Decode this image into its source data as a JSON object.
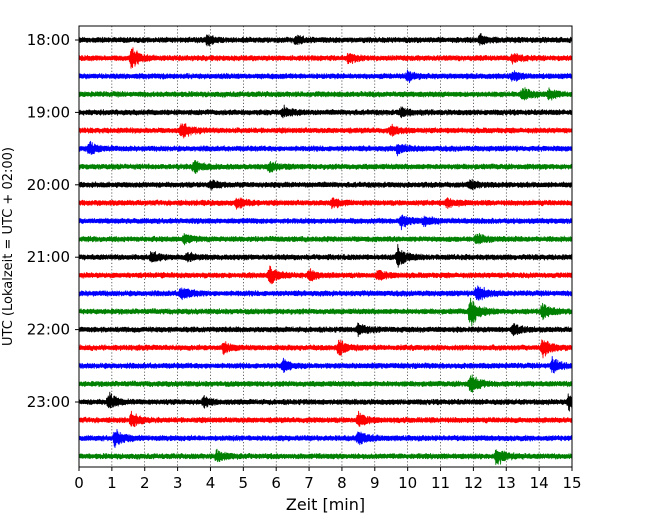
{
  "chart_data": {
    "type": "line",
    "subtype": "helicorder",
    "xlabel": "Zeit  [min]",
    "ylabel": "UTC (Lokalzeit = UTC + 02:00)",
    "xlim": [
      0,
      15
    ],
    "x_ticks": [
      "0",
      "1",
      "2",
      "3",
      "4",
      "5",
      "6",
      "7",
      "8",
      "9",
      "10",
      "11",
      "12",
      "13",
      "14",
      "15"
    ],
    "y_tick_labels": [
      "18:00",
      "19:00",
      "20:00",
      "21:00",
      "22:00",
      "23:00"
    ],
    "grid": "vertical dotted at each minute",
    "trace_colors": [
      "#000000",
      "#ff0000",
      "#0000ff",
      "#008000"
    ],
    "traces": [
      {
        "start": "18:00",
        "color": "#000000",
        "events": [
          [
            3.9,
            0.8
          ],
          [
            6.6,
            0.7
          ],
          [
            12.2,
            0.7
          ]
        ]
      },
      {
        "start": "18:15",
        "color": "#ff0000",
        "events": [
          [
            1.6,
            1.8
          ],
          [
            8.2,
            0.8
          ],
          [
            13.2,
            0.7
          ]
        ]
      },
      {
        "start": "18:30",
        "color": "#0000ff",
        "events": [
          [
            10.0,
            0.8
          ],
          [
            13.2,
            0.7
          ]
        ]
      },
      {
        "start": "18:45",
        "color": "#008000",
        "events": [
          [
            13.5,
            1.0
          ],
          [
            14.3,
            0.8
          ]
        ]
      },
      {
        "start": "19:00",
        "color": "#000000",
        "events": [
          [
            6.2,
            0.9
          ],
          [
            9.8,
            0.7
          ]
        ]
      },
      {
        "start": "19:15",
        "color": "#ff0000",
        "events": [
          [
            3.1,
            1.5
          ],
          [
            9.5,
            0.8
          ]
        ]
      },
      {
        "start": "19:30",
        "color": "#0000ff",
        "events": [
          [
            0.3,
            1.1
          ],
          [
            9.7,
            0.9
          ]
        ]
      },
      {
        "start": "19:45",
        "color": "#008000",
        "events": [
          [
            3.5,
            1.0
          ],
          [
            5.8,
            0.9
          ]
        ]
      },
      {
        "start": "20:00",
        "color": "#000000",
        "events": [
          [
            4.0,
            0.7
          ],
          [
            11.9,
            0.7
          ]
        ]
      },
      {
        "start": "20:15",
        "color": "#ff0000",
        "events": [
          [
            4.8,
            1.0
          ],
          [
            7.7,
            0.8
          ],
          [
            11.2,
            0.8
          ]
        ]
      },
      {
        "start": "20:30",
        "color": "#0000ff",
        "events": [
          [
            9.8,
            1.1
          ],
          [
            10.5,
            0.7
          ]
        ]
      },
      {
        "start": "20:45",
        "color": "#008000",
        "events": [
          [
            3.2,
            0.7
          ],
          [
            12.1,
            0.8
          ]
        ]
      },
      {
        "start": "21:00",
        "color": "#000000",
        "events": [
          [
            2.2,
            1.0
          ],
          [
            3.3,
            0.7
          ],
          [
            9.7,
            1.8
          ]
        ]
      },
      {
        "start": "21:15",
        "color": "#ff0000",
        "events": [
          [
            5.8,
            1.7
          ],
          [
            7.0,
            0.9
          ],
          [
            9.1,
            0.8
          ]
        ]
      },
      {
        "start": "21:30",
        "color": "#0000ff",
        "events": [
          [
            3.1,
            1.2
          ],
          [
            12.1,
            1.5
          ]
        ]
      },
      {
        "start": "21:45",
        "color": "#008000",
        "events": [
          [
            11.9,
            2.6
          ],
          [
            14.1,
            1.4
          ]
        ]
      },
      {
        "start": "22:00",
        "color": "#000000",
        "events": [
          [
            8.5,
            1.0
          ],
          [
            13.2,
            0.9
          ]
        ]
      },
      {
        "start": "22:15",
        "color": "#ff0000",
        "events": [
          [
            4.4,
            0.8
          ],
          [
            7.9,
            1.3
          ],
          [
            14.1,
            1.7
          ]
        ]
      },
      {
        "start": "22:30",
        "color": "#0000ff",
        "events": [
          [
            6.2,
            1.0
          ],
          [
            14.4,
            1.3
          ]
        ]
      },
      {
        "start": "22:45",
        "color": "#008000",
        "events": [
          [
            11.9,
            1.6
          ]
        ]
      },
      {
        "start": "23:00",
        "color": "#000000",
        "events": [
          [
            0.9,
            1.4
          ],
          [
            3.8,
            0.8
          ],
          [
            14.9,
            1.6
          ]
        ]
      },
      {
        "start": "23:15",
        "color": "#ff0000",
        "events": [
          [
            1.6,
            1.2
          ],
          [
            8.5,
            1.2
          ]
        ]
      },
      {
        "start": "23:30",
        "color": "#0000ff",
        "events": [
          [
            1.1,
            1.4
          ],
          [
            8.5,
            1.2
          ]
        ]
      },
      {
        "start": "23:45",
        "color": "#008000",
        "events": [
          [
            4.2,
            1.0
          ],
          [
            12.7,
            1.5
          ]
        ]
      }
    ]
  }
}
